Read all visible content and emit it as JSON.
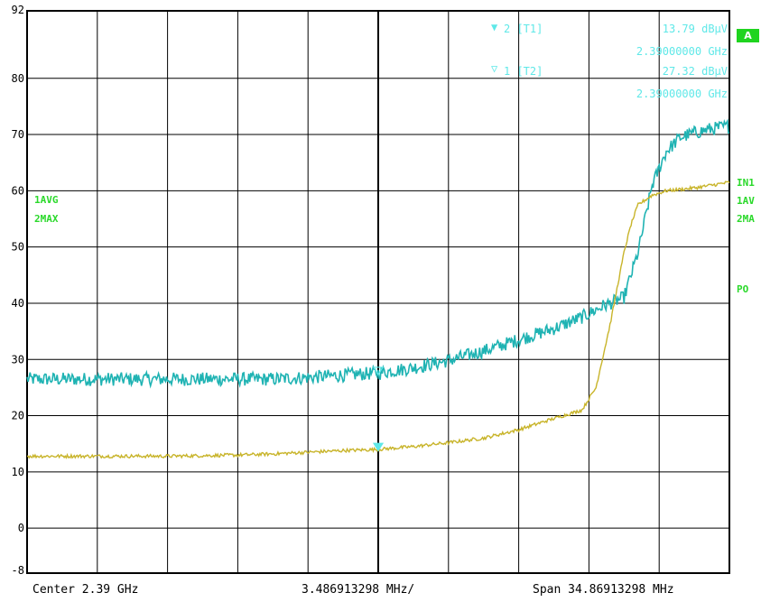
{
  "chart_data": {
    "type": "line",
    "x_unit": "MHz offset from center",
    "xlim": [
      -17.43456649,
      17.43456649
    ],
    "ylim": [
      -8,
      92
    ],
    "yticks": [
      92,
      80,
      70,
      60,
      50,
      40,
      30,
      20,
      10,
      0,
      -8
    ],
    "series": [
      {
        "color": "#1fb3b3",
        "x": [
          -17.43,
          -15.69,
          -13.95,
          -12.2,
          -10.46,
          -8.72,
          -6.97,
          -5.23,
          -3.49,
          -1.74,
          0.0,
          1.74,
          3.49,
          5.23,
          6.97,
          8.72,
          10.11,
          11.16,
          12.2,
          12.9,
          13.6,
          14.3,
          15.0,
          15.69,
          16.39,
          17.43
        ],
        "y": [
          26.5,
          26.5,
          26.5,
          26.5,
          26.5,
          26.5,
          26.5,
          26.5,
          26.8,
          27.2,
          27.6,
          28.5,
          29.8,
          31.5,
          33.5,
          35.5,
          37.5,
          39.5,
          41,
          49,
          61,
          67,
          69.5,
          70.3,
          70.9,
          71.5
        ],
        "noise": 1.2
      },
      {
        "color": "#c8b42a",
        "x": [
          -17.43,
          -15.69,
          -13.95,
          -12.2,
          -10.46,
          -8.72,
          -6.97,
          -5.23,
          -3.49,
          -1.74,
          0.0,
          1.74,
          3.49,
          5.23,
          6.97,
          8.72,
          10.11,
          10.81,
          11.5,
          12.2,
          12.55,
          12.9,
          13.6,
          14.3,
          15.69,
          17.43
        ],
        "y": [
          12.8,
          12.8,
          12.8,
          12.8,
          12.8,
          12.9,
          13.0,
          13.2,
          13.5,
          13.8,
          14.0,
          14.5,
          15.2,
          16.0,
          17.5,
          19.5,
          21,
          25,
          36,
          49,
          54,
          57.5,
          59.2,
          60,
          60.5,
          61.5
        ],
        "noise": 0.3
      }
    ],
    "markers": [
      {
        "symbol": "▼",
        "label": "2 [T1]",
        "value": "13.79 dBµV",
        "freq": "2.39000000 GHz"
      },
      {
        "symbol": "▽",
        "label": "1 [T2]",
        "value": "27.32 dBµV",
        "freq": "2.39000000 GHz"
      }
    ],
    "marker_positions": [
      {
        "x": 0.0,
        "y": 13.79
      },
      {
        "x": 0.0,
        "y": 27.32
      }
    ],
    "grid": true
  },
  "left_labels": [
    "1AVG",
    "2MAX"
  ],
  "right_labels": [
    "IN1",
    "1AV",
    "2MA"
  ],
  "right_extra": "PO",
  "screen_badge": "A",
  "footer": {
    "center": "Center 2.39 GHz",
    "per_div": "3.486913298 MHz/",
    "span": "Span 34.86913298 MHz"
  }
}
